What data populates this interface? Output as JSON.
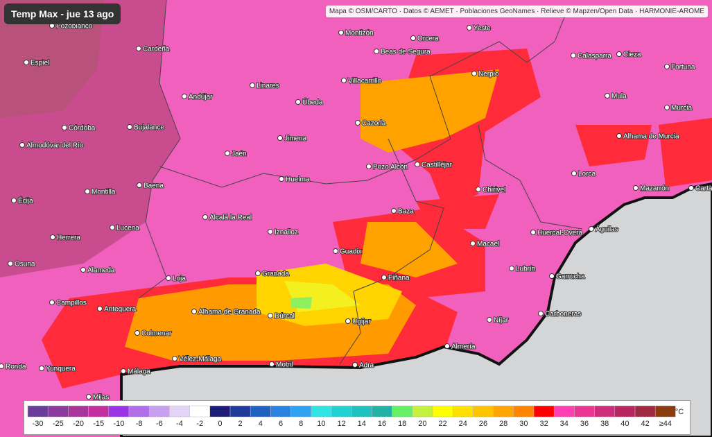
{
  "header": {
    "title": "Temp Max - jue 13 ago"
  },
  "attribution": "Mapa © OSM/CARTO · Datos © AEMET · Poblaciones GeoNames · Relieve © Mapzen/Open Data · HARMONIE-AROME",
  "places": [
    "Pozoblanco",
    "Cardeña",
    "Espiel",
    "Andújar",
    "Linares",
    "Úbeda",
    "Montizón",
    "Beas de Segura",
    "Orcera",
    "Yeste",
    "Villacarrillo",
    "Nerpio",
    "Calasparra",
    "Cieza",
    "Fortuna",
    "Mula",
    "Murcia",
    "Córdoba",
    "Bujalance",
    "Cazorla",
    "Jimena",
    "Almodóvar del Río",
    "Jaén",
    "Alhama de Murcia",
    "Pozo Alcón",
    "Castilléjar",
    "Huelma",
    "Montilla",
    "Baena",
    "Chirivel",
    "Lorca",
    "Mazarrón",
    "Cartagena",
    "Écija",
    "Baza",
    "Alcalá la Real",
    "Lucena",
    "Iznalloz",
    "Huercal-Overa",
    "Águilas",
    "Herrera",
    "Macael",
    "Guadix",
    "Osuna",
    "Alameda",
    "Lubrín",
    "Granada",
    "Loja",
    "Fiñana",
    "Garrucha",
    "Campillos",
    "Antequera",
    "Alhama de Granada",
    "Dúrcal",
    "Carboneras",
    "Níjar",
    "Ugíjar",
    "Colmenar",
    "Almería",
    "Vélez-Málaga",
    "Motril",
    "Adra",
    "Ronda",
    "Yunquera",
    "Málaga",
    "Mijas"
  ],
  "legend": {
    "unit": "°C",
    "items": [
      {
        "label": "-30",
        "color": "#6a3d9a"
      },
      {
        "label": "-25",
        "color": "#8a3a9c"
      },
      {
        "label": "-20",
        "color": "#a8359a"
      },
      {
        "label": "-15",
        "color": "#c42fa0"
      },
      {
        "label": "-10",
        "color": "#9a34e6"
      },
      {
        "label": "-8",
        "color": "#b06ee8"
      },
      {
        "label": "-6",
        "color": "#c9a0ef"
      },
      {
        "label": "-4",
        "color": "#e4d4f8"
      },
      {
        "label": "-2",
        "color": "#ffffff"
      },
      {
        "label": "0",
        "color": "#1c1c78"
      },
      {
        "label": "2",
        "color": "#1e3a9a"
      },
      {
        "label": "4",
        "color": "#2060c0"
      },
      {
        "label": "6",
        "color": "#2882e0"
      },
      {
        "label": "8",
        "color": "#30a2f2"
      },
      {
        "label": "10",
        "color": "#30e4e4"
      },
      {
        "label": "12",
        "color": "#22d2d2"
      },
      {
        "label": "14",
        "color": "#20c2c0"
      },
      {
        "label": "16",
        "color": "#22b2a6"
      },
      {
        "label": "18",
        "color": "#66f066"
      },
      {
        "label": "20",
        "color": "#c4f040"
      },
      {
        "label": "22",
        "color": "#ffff00"
      },
      {
        "label": "24",
        "color": "#ffe000"
      },
      {
        "label": "26",
        "color": "#ffc400"
      },
      {
        "label": "28",
        "color": "#ffa400"
      },
      {
        "label": "30",
        "color": "#ff8400"
      },
      {
        "label": "32",
        "color": "#ff0000"
      },
      {
        "label": "34",
        "color": "#ff40b4"
      },
      {
        "label": "36",
        "color": "#e83894"
      },
      {
        "label": "38",
        "color": "#d02c7c"
      },
      {
        "label": "40",
        "color": "#b82662"
      },
      {
        "label": "42",
        "color": "#a02a44"
      },
      {
        "label": "≥44",
        "color": "#8a3c10"
      }
    ]
  }
}
